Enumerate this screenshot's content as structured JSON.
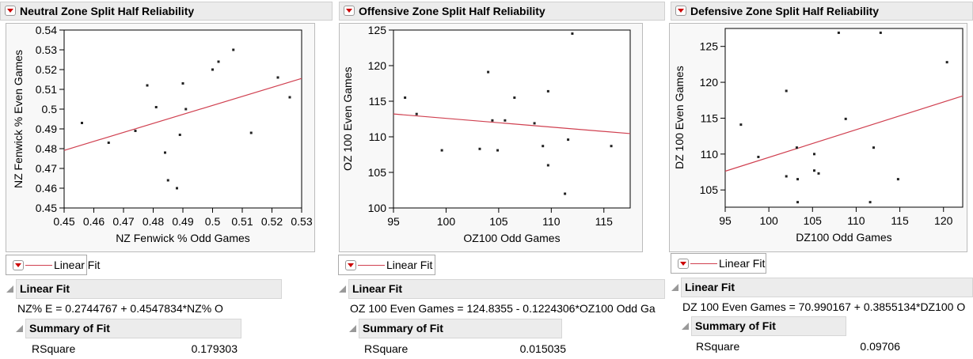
{
  "panels": [
    {
      "title": "Neutral Zone Split Half Reliability",
      "legend": "Linear Fit",
      "fit_title": "Linear Fit",
      "equation": "NZ% E = 0.2744767 + 0.4547834*NZ% O",
      "summary_title": "Summary of Fit",
      "rsq_label": "RSquare",
      "rsq_value": "0.179303"
    },
    {
      "title": "Offensive Zone Split Half Reliability",
      "legend": "Linear Fit",
      "fit_title": "Linear Fit",
      "equation": "OZ 100 Even Games = 124.8355 - 0.1224306*OZ100 Odd Ga",
      "summary_title": "Summary of Fit",
      "rsq_label": "RSquare",
      "rsq_value": "0.015035"
    },
    {
      "title": "Defensive Zone Split Half Reliability",
      "legend": "Linear Fit",
      "fit_title": "Linear Fit",
      "equation": "DZ 100 Even Games = 70.990167 + 0.3855134*DZ100 O",
      "summary_title": "Summary of Fit",
      "rsq_label": "RSquare",
      "rsq_value": "0.09706"
    }
  ],
  "colors": {
    "fit_line": "#d04050",
    "point": "#222222"
  },
  "chart_data": [
    {
      "type": "scatter",
      "xlabel": "NZ Fenwick % Odd Games",
      "ylabel": "NZ Fenwick % Even Games",
      "xlim": [
        0.45,
        0.53
      ],
      "ylim": [
        0.45,
        0.54
      ],
      "xticks": [
        "0.45",
        "0.46",
        "0.47",
        "0.48",
        "0.49",
        "0.5",
        "0.51",
        "0.52",
        "0.53"
      ],
      "yticks": [
        "0.45",
        "0.46",
        "0.47",
        "0.48",
        "0.49",
        "0.5",
        "0.51",
        "0.52",
        "0.53",
        "0.54"
      ],
      "fit": {
        "intercept": 0.2744767,
        "slope": 0.4547834
      },
      "points": [
        [
          0.456,
          0.493
        ],
        [
          0.465,
          0.483
        ],
        [
          0.474,
          0.489
        ],
        [
          0.478,
          0.512
        ],
        [
          0.481,
          0.501
        ],
        [
          0.484,
          0.478
        ],
        [
          0.485,
          0.464
        ],
        [
          0.488,
          0.46
        ],
        [
          0.489,
          0.487
        ],
        [
          0.49,
          0.513
        ],
        [
          0.491,
          0.5
        ],
        [
          0.5,
          0.52
        ],
        [
          0.502,
          0.524
        ],
        [
          0.507,
          0.53
        ],
        [
          0.513,
          0.488
        ],
        [
          0.522,
          0.516
        ],
        [
          0.526,
          0.506
        ]
      ]
    },
    {
      "type": "scatter",
      "xlabel": "OZ100 Odd Games",
      "ylabel": "OZ 100 Even Games",
      "xlim": [
        95,
        117.5
      ],
      "ylim": [
        100,
        125
      ],
      "xticks": [
        "95",
        "100",
        "105",
        "110",
        "115"
      ],
      "yticks": [
        "100",
        "105",
        "110",
        "115",
        "120",
        "125"
      ],
      "fit": {
        "intercept": 124.8355,
        "slope": -0.1224306
      },
      "points": [
        [
          96.1,
          115.5
        ],
        [
          97.2,
          113.2
        ],
        [
          99.6,
          108.1
        ],
        [
          103.2,
          108.3
        ],
        [
          104.0,
          119.1
        ],
        [
          104.4,
          112.3
        ],
        [
          104.9,
          108.1
        ],
        [
          105.6,
          112.3
        ],
        [
          106.5,
          115.5
        ],
        [
          108.4,
          111.9
        ],
        [
          109.2,
          108.7
        ],
        [
          109.7,
          116.4
        ],
        [
          109.7,
          106.0
        ],
        [
          111.3,
          102.0
        ],
        [
          111.6,
          109.6
        ],
        [
          112.0,
          124.5
        ],
        [
          115.7,
          108.7
        ]
      ]
    },
    {
      "type": "scatter",
      "xlabel": "DZ100 Odd Games",
      "ylabel": "DZ 100 Even Games",
      "xlim": [
        95,
        122.2
      ],
      "ylim": [
        102.6,
        127.5
      ],
      "xticks": [
        "95",
        "100",
        "105",
        "110",
        "115",
        "120"
      ],
      "yticks": [
        "105",
        "110",
        "115",
        "120",
        "125"
      ],
      "fit": {
        "intercept": 70.990167,
        "slope": 0.3855134
      },
      "points": [
        [
          96.8,
          114.1
        ],
        [
          98.8,
          109.6
        ],
        [
          102.0,
          118.8
        ],
        [
          102.0,
          106.9
        ],
        [
          103.2,
          110.9
        ],
        [
          103.3,
          106.5
        ],
        [
          103.3,
          103.3
        ],
        [
          105.2,
          110.0
        ],
        [
          105.2,
          107.7
        ],
        [
          105.7,
          107.3
        ],
        [
          108.0,
          126.9
        ],
        [
          108.8,
          114.9
        ],
        [
          111.6,
          103.3
        ],
        [
          112.0,
          110.9
        ],
        [
          112.8,
          126.9
        ],
        [
          114.8,
          106.5
        ],
        [
          120.4,
          122.8
        ]
      ]
    }
  ]
}
